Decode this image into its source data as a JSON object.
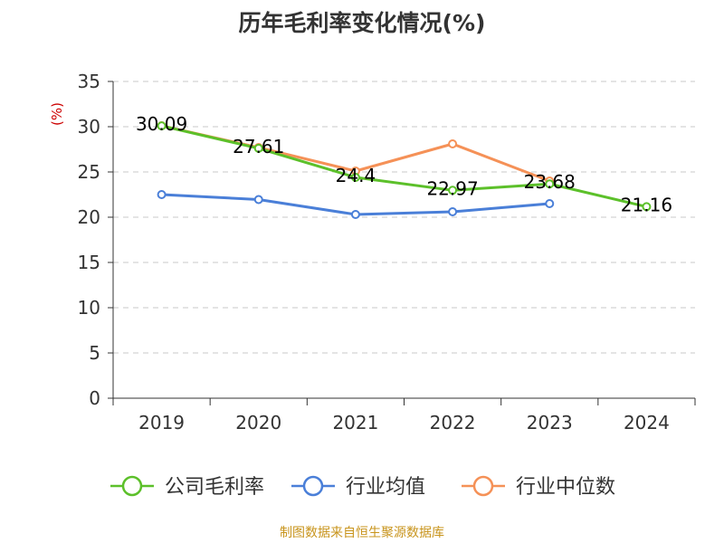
{
  "chart_data": {
    "type": "line",
    "title": "历年毛利率变化情况(%)",
    "ylabel": "(%)",
    "xlabel": "",
    "categories": [
      "2019",
      "2020",
      "2021",
      "2022",
      "2023",
      "2024"
    ],
    "ylim": [
      0,
      35
    ],
    "yticks": [
      0,
      5,
      10,
      15,
      20,
      25,
      30,
      35
    ],
    "grid": true,
    "legend_position": "bottom",
    "series": [
      {
        "name": "公司毛利率",
        "color": "#5cc02a",
        "values": [
          30.09,
          27.61,
          24.4,
          22.97,
          23.68,
          21.16
        ],
        "labels": [
          "30.09",
          "27.61",
          "24.4",
          "22.97",
          "23.68",
          "21.16"
        ]
      },
      {
        "name": "行业均值",
        "color": "#4a7fd8",
        "values": [
          22.5,
          21.95,
          20.3,
          20.6,
          21.5,
          null
        ],
        "labels": []
      },
      {
        "name": "行业中位数",
        "color": "#f59157",
        "values": [
          30.1,
          27.7,
          25.1,
          28.1,
          24.0,
          null
        ],
        "labels": []
      }
    ]
  },
  "source": "制图数据来自恒生聚源数据库"
}
